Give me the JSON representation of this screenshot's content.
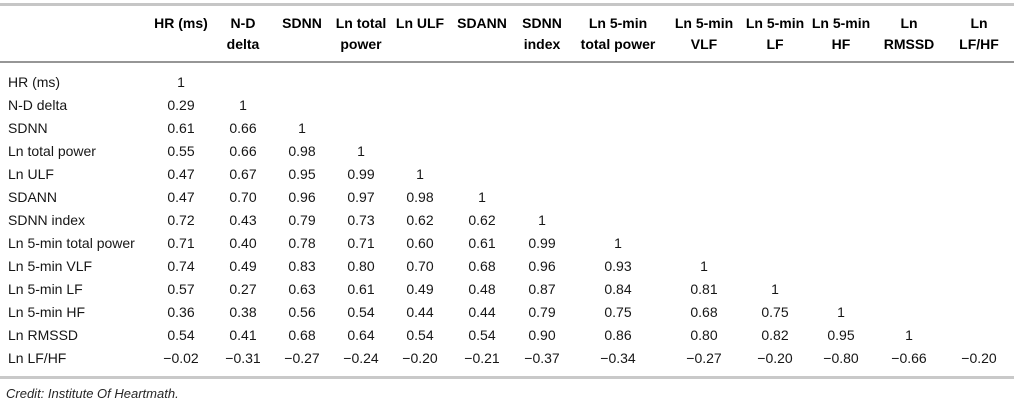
{
  "table": {
    "columns": [
      {
        "lines": [
          "HR (ms)"
        ]
      },
      {
        "lines": [
          "N-D",
          "delta"
        ]
      },
      {
        "lines": [
          "SDNN"
        ]
      },
      {
        "lines": [
          "Ln total",
          "power"
        ]
      },
      {
        "lines": [
          "Ln ULF"
        ]
      },
      {
        "lines": [
          "SDANN"
        ]
      },
      {
        "lines": [
          "SDNN",
          "index"
        ]
      },
      {
        "lines": [
          "Ln 5-min",
          "total power"
        ]
      },
      {
        "lines": [
          "Ln 5-min",
          "VLF"
        ]
      },
      {
        "lines": [
          "Ln 5-min",
          "LF"
        ]
      },
      {
        "lines": [
          "Ln 5-min",
          "HF"
        ]
      },
      {
        "lines": [
          "Ln",
          "RMSSD"
        ]
      },
      {
        "lines": [
          "Ln",
          "LF/HF"
        ]
      }
    ],
    "rows": [
      {
        "label": "HR (ms)",
        "values": [
          "1",
          "",
          "",
          "",
          "",
          "",
          "",
          "",
          "",
          "",
          "",
          "",
          ""
        ]
      },
      {
        "label": "N-D delta",
        "values": [
          "0.29",
          "1",
          "",
          "",
          "",
          "",
          "",
          "",
          "",
          "",
          "",
          "",
          ""
        ]
      },
      {
        "label": "SDNN",
        "values": [
          "0.61",
          "0.66",
          "1",
          "",
          "",
          "",
          "",
          "",
          "",
          "",
          "",
          "",
          ""
        ]
      },
      {
        "label": "Ln total power",
        "values": [
          "0.55",
          "0.66",
          "0.98",
          "1",
          "",
          "",
          "",
          "",
          "",
          "",
          "",
          "",
          ""
        ]
      },
      {
        "label": "Ln ULF",
        "values": [
          "0.47",
          "0.67",
          "0.95",
          "0.99",
          "1",
          "",
          "",
          "",
          "",
          "",
          "",
          "",
          ""
        ]
      },
      {
        "label": "SDANN",
        "values": [
          "0.47",
          "0.70",
          "0.96",
          "0.97",
          "0.98",
          "1",
          "",
          "",
          "",
          "",
          "",
          "",
          ""
        ]
      },
      {
        "label": "SDNN index",
        "values": [
          "0.72",
          "0.43",
          "0.79",
          "0.73",
          "0.62",
          "0.62",
          "1",
          "",
          "",
          "",
          "",
          "",
          ""
        ]
      },
      {
        "label": "Ln 5-min total power",
        "values": [
          "0.71",
          "0.40",
          "0.78",
          "0.71",
          "0.60",
          "0.61",
          "0.99",
          "1",
          "",
          "",
          "",
          "",
          ""
        ]
      },
      {
        "label": "Ln 5-min VLF",
        "values": [
          "0.74",
          "0.49",
          "0.83",
          "0.80",
          "0.70",
          "0.68",
          "0.96",
          "0.93",
          "1",
          "",
          "",
          "",
          ""
        ]
      },
      {
        "label": "Ln 5-min LF",
        "values": [
          "0.57",
          "0.27",
          "0.63",
          "0.61",
          "0.49",
          "0.48",
          "0.87",
          "0.84",
          "0.81",
          "1",
          "",
          "",
          ""
        ]
      },
      {
        "label": "Ln 5-min HF",
        "values": [
          "0.36",
          "0.38",
          "0.56",
          "0.54",
          "0.44",
          "0.44",
          "0.79",
          "0.75",
          "0.68",
          "0.75",
          "1",
          "",
          ""
        ]
      },
      {
        "label": "Ln RMSSD",
        "values": [
          "0.54",
          "0.41",
          "0.68",
          "0.64",
          "0.54",
          "0.54",
          "0.90",
          "0.86",
          "0.80",
          "0.82",
          "0.95",
          "1",
          ""
        ]
      },
      {
        "label": "Ln LF/HF",
        "values": [
          "−0.02",
          "−0.31",
          "−0.27",
          "−0.24",
          "−0.20",
          "−0.21",
          "−0.37",
          "−0.34",
          "−0.27",
          "−0.20",
          "−0.80",
          "−0.66",
          "−0.20"
        ]
      }
    ]
  },
  "credit": "Credit: Institute Of Heartmath."
}
